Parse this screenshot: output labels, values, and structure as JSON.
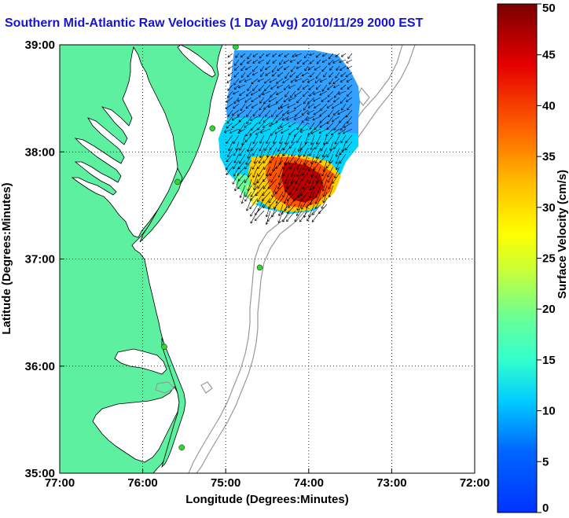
{
  "title": "Southern Mid-Atlantic Raw Velocities (1 Day Avg) 2010/11/29 2000 EST",
  "xlabel": "Longitude (Degrees:Minutes)",
  "ylabel": "Latitude (Degrees:Minutes)",
  "x_ticks": [
    "77:00",
    "76:00",
    "75:00",
    "74:00",
    "73:00",
    "72:00"
  ],
  "y_ticks": [
    "39:00",
    "38:00",
    "37:00",
    "36:00",
    "35:00"
  ],
  "colorbar": {
    "label": "Surface Velocity (cm/s)",
    "ticks": [
      "0",
      "5",
      "10",
      "15",
      "20",
      "25",
      "30",
      "35",
      "40",
      "45",
      "50"
    ],
    "range": [
      0,
      50
    ]
  },
  "map": {
    "lon_range": [
      -77,
      -72
    ],
    "lat_range": [
      35,
      39
    ],
    "land_color": "#5cf0a0",
    "ocean_color": "#ffffff",
    "station_color": "#2ed82e",
    "stations": [
      {
        "lon": -74.88,
        "lat": 38.98
      },
      {
        "lon": -75.16,
        "lat": 38.22
      },
      {
        "lon": -75.58,
        "lat": 37.72
      },
      {
        "lon": -74.59,
        "lat": 36.92
      },
      {
        "lon": -75.74,
        "lat": 36.18
      },
      {
        "lon": -75.53,
        "lat": 35.24
      }
    ]
  }
}
